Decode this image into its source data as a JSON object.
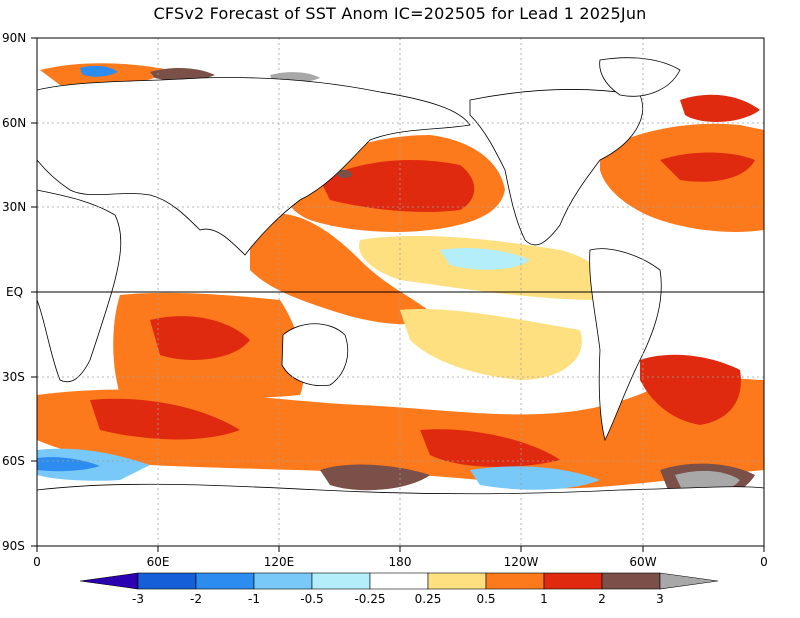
{
  "title": "CFSv2 Forecast of SST Anom IC=202505 for Lead 1 2025Jun",
  "map": {
    "y_ticks": [
      "90N",
      "60N",
      "30N",
      "EQ",
      "30S",
      "60S",
      "90S"
    ],
    "x_ticks": [
      "0",
      "60E",
      "120E",
      "180",
      "120W",
      "60W",
      "0"
    ],
    "colors": {
      "land": "#ffffff",
      "equator": "#000000",
      "grid": "#a0a0a0"
    }
  },
  "colorbar": {
    "labels": [
      "-3",
      "-2",
      "-1",
      "-0.5",
      "-0.25",
      "0.25",
      "0.5",
      "1",
      "2",
      "3"
    ],
    "bins": [
      {
        "color": "#2b00b0"
      },
      {
        "color": "#1560d8"
      },
      {
        "color": "#2d8cf0"
      },
      {
        "color": "#78c8f8"
      },
      {
        "color": "#b4eefa"
      },
      {
        "color": "#ffffff"
      },
      {
        "color": "#ffe080"
      },
      {
        "color": "#fd7a1c"
      },
      {
        "color": "#e02a10"
      },
      {
        "color": "#7a5048"
      },
      {
        "color": "#a8a8a8"
      }
    ]
  }
}
